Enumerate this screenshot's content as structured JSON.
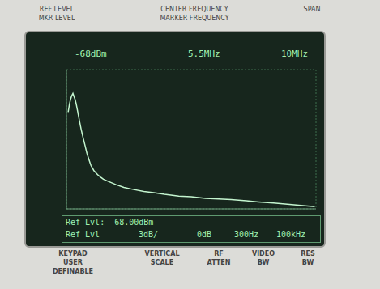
{
  "chart_data": {
    "type": "line",
    "x": [
      0.57,
      0.62,
      0.66,
      0.71,
      0.76,
      0.8,
      0.85,
      0.89,
      0.95,
      1.02,
      1.09,
      1.16,
      1.24,
      1.32,
      1.4,
      1.48,
      1.6,
      1.75,
      1.86,
      1.98,
      2.2,
      2.47,
      2.8,
      3.12,
      3.6,
      4.0,
      4.43,
      5.0,
      5.5,
      6.07,
      6.6,
      7.1,
      7.71,
      8.2,
      8.8,
      9.35,
      9.9,
      10.45
    ],
    "values": [
      -75.3,
      -74.0,
      -73.2,
      -72.5,
      -72.1,
      -72.6,
      -73.2,
      -73.9,
      -75.2,
      -76.8,
      -78.3,
      -79.6,
      -81.0,
      -82.4,
      -83.5,
      -84.5,
      -85.4,
      -86.1,
      -86.5,
      -86.9,
      -87.3,
      -87.8,
      -88.3,
      -88.6,
      -89.0,
      -89.2,
      -89.5,
      -89.8,
      -89.9,
      -90.2,
      -90.3,
      -90.4,
      -90.6,
      -90.8,
      -91.0,
      -91.2,
      -91.4,
      -91.6
    ],
    "color": "#c4f5cf",
    "xlim": [
      0.5,
      10.5
    ],
    "xticks": [
      0.5,
      1.5,
      2.5,
      3.5,
      4.5,
      5.5,
      6.5,
      7.5,
      8.5,
      9.5,
      10.5
    ],
    "ylim": [
      -92,
      -68
    ],
    "yticks": [
      -92,
      -89,
      -86,
      -83,
      -80,
      -77,
      -74,
      -71,
      -68
    ],
    "grid": true,
    "tick_labels": false
  },
  "bezel_top": [
    {
      "lines": [
        "REF LEVEL",
        "MKR LEVEL"
      ]
    },
    {
      "lines": [
        "CENTER FREQUENCY",
        "MARKER FREQUENCY"
      ]
    },
    {
      "lines": [
        "SPAN"
      ]
    }
  ],
  "screen_header": [
    "-68dBm",
    "5.5MHz",
    "10MHz"
  ],
  "status_line_1": "Ref Lvl: -68.00dBm",
  "status_line_2": [
    "Ref Lvl",
    "3dB/",
    "0dB",
    "300Hz",
    "100kHz"
  ],
  "bezel_bottom": [
    {
      "lines": [
        "KEYPAD",
        "USER",
        "DEFINABLE"
      ]
    },
    {
      "lines": [
        "VERTICAL",
        "SCALE"
      ]
    },
    {
      "lines": [
        "RF",
        "ATTEN"
      ]
    },
    {
      "lines": [
        "VIDEO",
        "BW"
      ]
    },
    {
      "lines": [
        "RES",
        "BW"
      ]
    }
  ]
}
